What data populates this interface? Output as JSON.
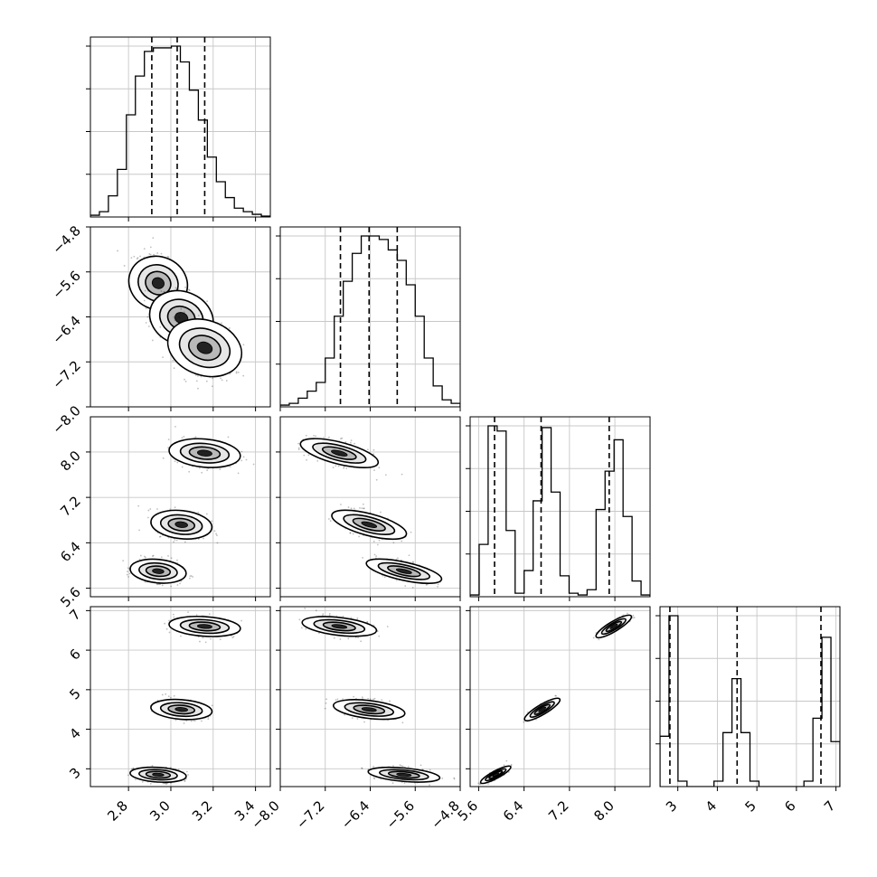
{
  "chart_data": {
    "type": "corner",
    "grid": true,
    "parameters": [
      {
        "range": [
          2.62,
          3.47
        ],
        "x_ticks": [
          "2.8",
          "3.0",
          "3.2",
          "3.4"
        ],
        "histogram": {
          "bins": 20,
          "counts": [
            0.01,
            0.03,
            0.12,
            0.27,
            0.58,
            0.8,
            0.94,
            0.96,
            0.96,
            0.97,
            0.88,
            0.72,
            0.55,
            0.34,
            0.2,
            0.11,
            0.05,
            0.03,
            0.015,
            0.005
          ],
          "quantiles": [
            2.91,
            3.03,
            3.16
          ]
        }
      },
      {
        "range": [
          -8.0,
          -4.8
        ],
        "x_ticks": [
          "−8.0",
          "−7.2",
          "−6.4",
          "−5.6",
          "−4.8"
        ],
        "y_ticks": [
          "−8.0",
          "−7.2",
          "−6.4",
          "−5.6",
          "−4.8"
        ],
        "histogram": {
          "bins": 20,
          "counts": [
            0.01,
            0.02,
            0.05,
            0.09,
            0.14,
            0.28,
            0.52,
            0.72,
            0.88,
            0.98,
            0.98,
            0.96,
            0.9,
            0.84,
            0.7,
            0.52,
            0.28,
            0.12,
            0.04,
            0.02
          ],
          "quantiles": [
            -6.93,
            -6.42,
            -5.92
          ]
        }
      },
      {
        "range": [
          5.45,
          8.62
        ],
        "x_ticks": [
          "5.6",
          "6.4",
          "7.2",
          "8.0"
        ],
        "y_ticks": [
          "5.6",
          "6.4",
          "7.2",
          "8.0"
        ],
        "histogram": {
          "bins": 20,
          "counts": [
            0.01,
            0.3,
            0.98,
            0.95,
            0.38,
            0.02,
            0.15,
            0.55,
            0.97,
            0.6,
            0.12,
            0.02,
            0.01,
            0.04,
            0.5,
            0.72,
            0.9,
            0.46,
            0.09,
            0.01
          ],
          "quantiles": [
            5.88,
            6.7,
            7.9
          ]
        }
      },
      {
        "range": [
          2.55,
          7.1
        ],
        "x_ticks": [
          "3",
          "4",
          "5",
          "6",
          "7"
        ],
        "y_ticks": [
          "3",
          "4",
          "5",
          "6",
          "7"
        ],
        "histogram": {
          "bins": 20,
          "counts": [
            0.28,
            0.95,
            0.03,
            0.0,
            0.0,
            0.0,
            0.03,
            0.3,
            0.6,
            0.3,
            0.03,
            0.0,
            0.0,
            0.0,
            0.0,
            0.0,
            0.03,
            0.38,
            0.83,
            0.25
          ],
          "quantiles": [
            2.8,
            4.5,
            6.62
          ]
        }
      }
    ],
    "clusters": [
      {
        "means": [
          2.94,
          -5.8,
          5.9,
          2.85
        ],
        "sd": [
          0.055,
          0.25,
          0.1,
          0.09
        ],
        "corr_01": -0.35
      },
      {
        "means": [
          3.05,
          -6.42,
          6.72,
          4.5
        ],
        "sd": [
          0.06,
          0.25,
          0.12,
          0.12
        ],
        "corr_01": -0.35
      },
      {
        "means": [
          3.16,
          -6.95,
          7.98,
          6.6
        ],
        "sd": [
          0.07,
          0.26,
          0.12,
          0.12
        ],
        "corr_01": -0.35
      }
    ],
    "pairwise_correlations": {
      "1-2": -0.82,
      "1-3": -0.3,
      "2-3": 0.96
    }
  }
}
